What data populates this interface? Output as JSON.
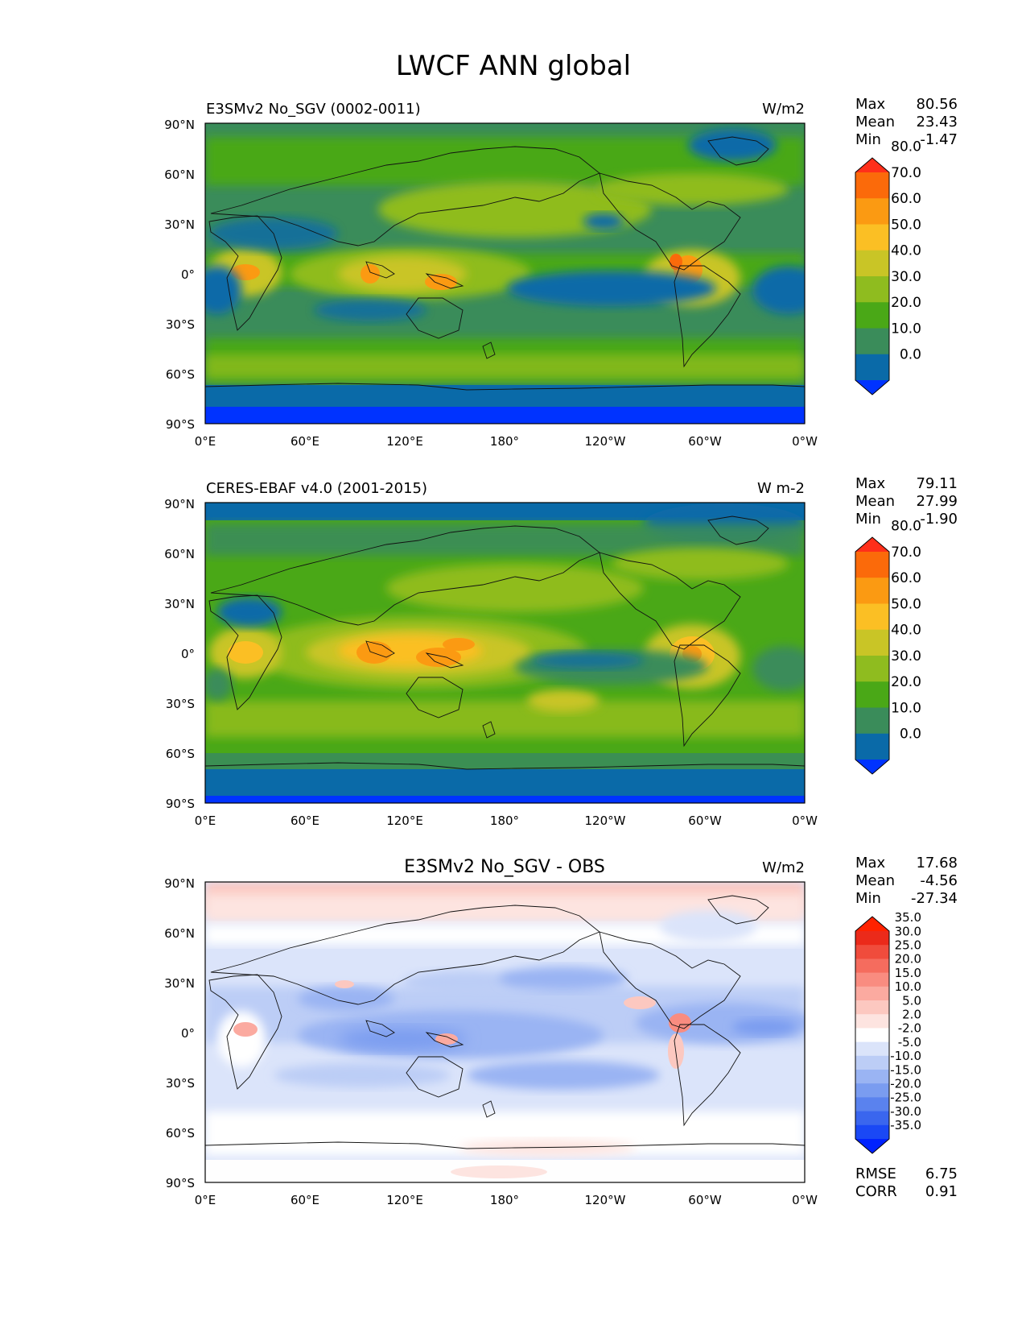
{
  "figure": {
    "title": "LWCF ANN global"
  },
  "lon_ticks": [
    "0°E",
    "60°E",
    "120°E",
    "180°",
    "120°W",
    "60°W",
    "0°W"
  ],
  "lat_ticks": [
    "90°N",
    "60°N",
    "30°N",
    "0°",
    "30°S",
    "60°S",
    "90°S"
  ],
  "panels": [
    {
      "id": "model",
      "title": "E3SMv2 No_SGV (0002-0011)",
      "title_position": "left",
      "units": "W/m2",
      "stats": {
        "max_label": "Max",
        "max": "80.56",
        "mean_label": "Mean",
        "mean": "23.43",
        "min_label": "Min",
        "min": "-1.47"
      },
      "colorbar": {
        "levels": [
          "0.0",
          "10.0",
          "20.0",
          "30.0",
          "40.0",
          "50.0",
          "60.0",
          "70.0",
          "80.0"
        ],
        "colors": [
          "#0033ff",
          "#0a6aa8",
          "#3a8c5a",
          "#4aa817",
          "#8fbc1f",
          "#c9c526",
          "#fbbf24",
          "#fb9a12",
          "#fb6a0a",
          "#ff2f1a"
        ]
      }
    },
    {
      "id": "obs",
      "title": "CERES-EBAF v4.0 (2001-2015)",
      "title_position": "left",
      "units": "W m-2",
      "stats": {
        "max_label": "Max",
        "max": "79.11",
        "mean_label": "Mean",
        "mean": "27.99",
        "min_label": "Min",
        "min": "-1.90"
      },
      "colorbar": {
        "levels": [
          "0.0",
          "10.0",
          "20.0",
          "30.0",
          "40.0",
          "50.0",
          "60.0",
          "70.0",
          "80.0"
        ],
        "colors": [
          "#0033ff",
          "#0a6aa8",
          "#3a8c5a",
          "#4aa817",
          "#8fbc1f",
          "#c9c526",
          "#fbbf24",
          "#fb9a12",
          "#fb6a0a",
          "#ff2f1a"
        ]
      }
    },
    {
      "id": "diff",
      "title": "E3SMv2 No_SGV - OBS",
      "title_position": "center",
      "units": "W/m2",
      "stats": {
        "max_label": "Max",
        "max": "17.68",
        "mean_label": "Mean",
        "mean": "-4.56",
        "min_label": "Min",
        "min": "-27.34"
      },
      "colorbar": {
        "levels": [
          "-35.0",
          "-30.0",
          "-25.0",
          "-20.0",
          "-15.0",
          "-10.0",
          "-5.0",
          "-2.0",
          "2.0",
          "5.0",
          "10.0",
          "15.0",
          "20.0",
          "25.0",
          "30.0",
          "35.0"
        ],
        "colors": [
          "#0022ff",
          "#1a48f5",
          "#3a66ee",
          "#5a82ee",
          "#7a9cf0",
          "#9ab4f3",
          "#bccdf6",
          "#dbe4fa",
          "#ffffff",
          "#fde4e0",
          "#fcc8c0",
          "#fbaaa0",
          "#f98c80",
          "#f56c5e",
          "#f04c3c",
          "#eb2a1a",
          "#ff2200"
        ]
      },
      "metrics": {
        "rmse_label": "RMSE",
        "rmse": "6.75",
        "corr_label": "CORR",
        "corr": "0.91"
      }
    }
  ]
}
